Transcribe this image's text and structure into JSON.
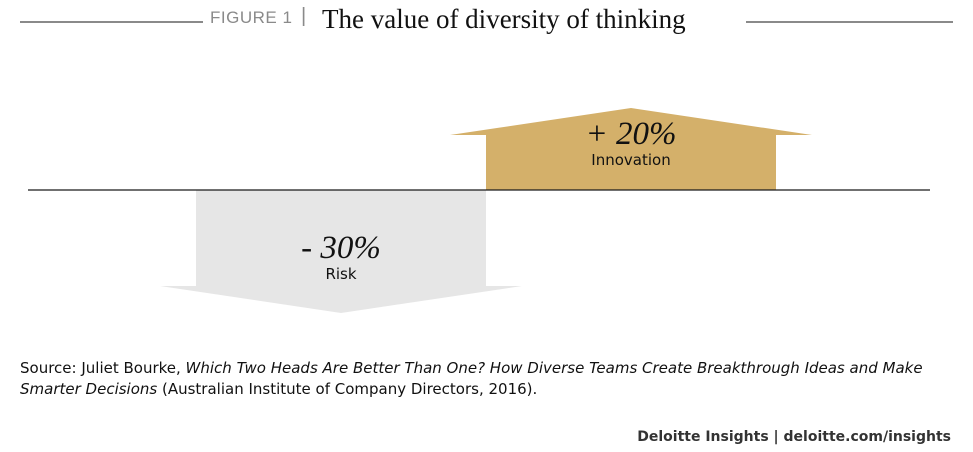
{
  "figure": {
    "label": "FIGURE 1",
    "separator": "|",
    "title": "The value of diversity of thinking"
  },
  "chart_data": {
    "type": "bar",
    "categories": [
      "Risk",
      "Innovation"
    ],
    "values": [
      -30,
      20
    ],
    "value_labels": [
      "- 30%",
      "+ 20%"
    ],
    "unit": "%",
    "colors": [
      "#e6e6e6",
      "#d4b06a"
    ],
    "baseline": 0,
    "ylim": [
      -45,
      45
    ]
  },
  "source": {
    "prefix": "Source: Juliet Bourke, ",
    "italic": "Which Two Heads Are Better Than One? How Diverse Teams Create Breakthrough Ideas and Make Smarter Decisions",
    "suffix": " (Australian Institute of Company Directors, 2016)."
  },
  "footer": "Deloitte Insights | deloitte.com/insights"
}
